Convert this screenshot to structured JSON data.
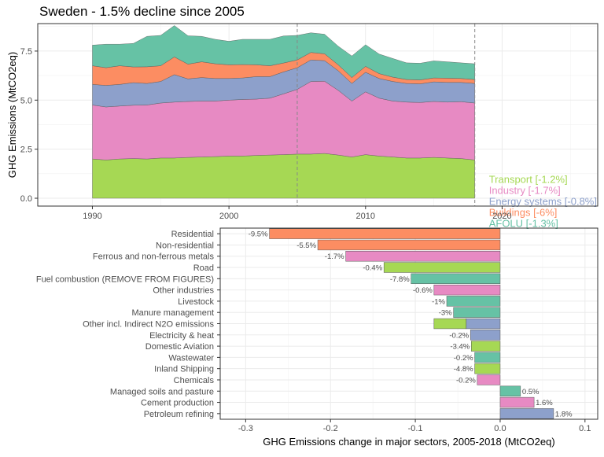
{
  "title": "Sweden - 1.5% decline since 2005",
  "colors": {
    "transport": "#a6d854",
    "industry": "#e78ac3",
    "energy": "#8da0cb",
    "buildings": "#fc8d62",
    "afolu": "#66c2a5"
  },
  "chart_data": [
    {
      "type": "area",
      "stacked": true,
      "ylabel": "GHG Emissions (MtCO2eq)",
      "xlabel": "",
      "xlim": [
        1986,
        2027
      ],
      "ylim": [
        -0.4,
        8.9
      ],
      "x_ticks": [
        1990,
        2000,
        2010,
        2020
      ],
      "y_ticks": [
        0.0,
        2.5,
        5.0,
        7.5
      ],
      "y_tick_labels": [
        "0.0",
        "2.5",
        "5.0",
        "7.5"
      ],
      "grid": true,
      "reference_lines_x": [
        2005,
        2018
      ],
      "x": [
        1990,
        1991,
        1992,
        1993,
        1994,
        1995,
        1996,
        1997,
        1998,
        1999,
        2000,
        2001,
        2002,
        2003,
        2004,
        2005,
        2006,
        2007,
        2008,
        2009,
        2010,
        2011,
        2012,
        2013,
        2014,
        2015,
        2016,
        2017,
        2018
      ],
      "series": [
        {
          "key": "transport",
          "name": "Transport [-1.2%]",
          "values": [
            2.0,
            1.95,
            2.0,
            2.02,
            2.0,
            2.05,
            2.05,
            2.08,
            2.1,
            2.12,
            2.15,
            2.15,
            2.18,
            2.2,
            2.22,
            2.25,
            2.25,
            2.28,
            2.2,
            2.1,
            2.22,
            2.15,
            2.1,
            2.05,
            2.05,
            2.08,
            2.05,
            2.02,
            1.95
          ]
        },
        {
          "key": "industry",
          "name": "Industry [-1.7%]",
          "values": [
            2.75,
            2.7,
            2.7,
            2.72,
            2.75,
            2.8,
            2.85,
            2.85,
            2.85,
            2.83,
            2.85,
            2.88,
            2.87,
            2.9,
            3.1,
            3.3,
            3.7,
            3.68,
            3.3,
            2.85,
            3.2,
            2.95,
            2.85,
            2.85,
            2.83,
            2.85,
            2.85,
            2.9,
            2.9
          ]
        },
        {
          "key": "energy",
          "name": "Energy systems [-0.8%]",
          "values": [
            1.05,
            1.1,
            1.1,
            1.15,
            1.1,
            1.1,
            1.4,
            1.15,
            1.2,
            1.15,
            1.1,
            1.1,
            1.15,
            1.1,
            1.12,
            1.1,
            1.1,
            1.05,
            1.0,
            0.9,
            1.0,
            1.0,
            1.0,
            0.95,
            0.95,
            1.0,
            1.0,
            0.98,
            1.0
          ]
        },
        {
          "key": "buildings",
          "name": "Buildings [-6%]",
          "values": [
            0.95,
            0.9,
            0.95,
            0.8,
            0.85,
            0.8,
            0.9,
            0.75,
            0.8,
            0.75,
            0.7,
            0.68,
            0.6,
            0.55,
            0.45,
            0.4,
            0.38,
            0.35,
            0.3,
            0.3,
            0.3,
            0.25,
            0.22,
            0.2,
            0.2,
            0.2,
            0.22,
            0.2,
            0.2
          ]
        },
        {
          "key": "afolu",
          "name": "AFOLU [-1.3%]",
          "values": [
            1.05,
            1.2,
            1.1,
            1.2,
            1.55,
            1.55,
            1.6,
            1.45,
            1.3,
            1.25,
            1.2,
            1.29,
            1.3,
            1.35,
            1.38,
            1.25,
            1.0,
            1.0,
            0.95,
            1.1,
            1.1,
            1.0,
            0.95,
            0.85,
            0.85,
            0.87,
            0.83,
            0.8,
            0.8
          ]
        }
      ],
      "label_order": [
        "afolu",
        "buildings",
        "energy",
        "industry",
        "transport"
      ]
    },
    {
      "type": "bar",
      "orientation": "horizontal",
      "xlabel": "GHG Emissions change in major sectors, 2005-2018 (MtCO2eq)",
      "ylabel": "",
      "xlim": [
        -0.33,
        0.115
      ],
      "x_ticks": [
        -0.3,
        -0.2,
        -0.1,
        0.0,
        0.1
      ],
      "x_tick_labels": [
        "-0.3",
        "-0.2",
        "-0.1",
        "0.0",
        "0.1"
      ],
      "grid": true,
      "categories": [
        "Residential",
        "Non-residential",
        "Ferrous and non-ferrous metals",
        "Road",
        "Fuel combustion (REMOVE FROM FIGURES)",
        "Other industries",
        "Livestock",
        "Manure management",
        "Other incl. Indirect N2O emissions",
        "Electricity & heat",
        "Domestic Aviation",
        "Wastewater",
        "Inland Shipping",
        "Chemicals",
        "Managed soils and pasture",
        "Cement production",
        "Petroleum refining"
      ],
      "values": [
        -0.272,
        -0.215,
        -0.182,
        -0.137,
        -0.105,
        -0.078,
        -0.063,
        -0.055,
        -0.078,
        -0.035,
        -0.034,
        -0.03,
        -0.03,
        -0.027,
        0.024,
        0.04,
        0.063
      ],
      "segments": [
        null,
        null,
        null,
        null,
        null,
        null,
        null,
        null,
        [
          {
            "value": -0.04,
            "key": "energy"
          },
          {
            "value": -0.038,
            "key": "transport"
          }
        ],
        null,
        null,
        null,
        null,
        null,
        null,
        null,
        null
      ],
      "sector_keys": [
        "buildings",
        "buildings",
        "industry",
        "transport",
        "afolu",
        "industry",
        "afolu",
        "afolu",
        "energy",
        "energy",
        "transport",
        "afolu",
        "transport",
        "industry",
        "afolu",
        "industry",
        "energy"
      ],
      "labels": [
        "-9.5%",
        "-5.5%",
        "-1.7%",
        "-0.4%",
        "-7.8%",
        "-0.6%",
        "-1%",
        "-3%",
        "",
        "-0.2%",
        "-3.4%",
        "-0.2%",
        "-4.8%",
        "-0.2%",
        "0.5%",
        "1.6%",
        "1.8%"
      ]
    }
  ]
}
